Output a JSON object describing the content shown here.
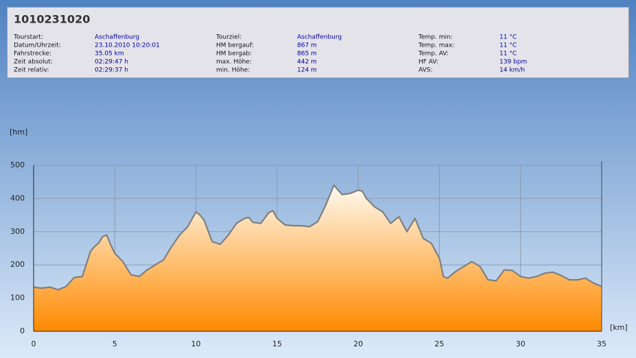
{
  "header": {
    "title": "1010231020",
    "columns": [
      [
        [
          "Tourstart:",
          "Aschaffenburg"
        ],
        [
          "Datum/Uhrzeit:",
          "23.10.2010 10:20:01"
        ],
        [
          "Fahrstrecke:",
          "35.05 km"
        ],
        [
          "Zeit absolut:",
          "02:29:47 h"
        ],
        [
          "Zeit relativ:",
          "02:29:37 h"
        ]
      ],
      [
        [
          "Tourziel:",
          "Aschaffenburg"
        ],
        [
          "HM bergauf:",
          "867 m"
        ],
        [
          "HM bergab:",
          "865 m"
        ],
        [
          "max. Höhe:",
          "442 m"
        ],
        [
          "min. Höhe:",
          "124 m"
        ]
      ],
      [
        [
          "Temp. min:",
          "11 °C"
        ],
        [
          "Temp. max:",
          "11 °C"
        ],
        [
          "Temp. AV:",
          "11 °C"
        ],
        [
          "HF AV:",
          "139 bpm"
        ],
        [
          "AVS:",
          "14 km/h"
        ]
      ]
    ]
  },
  "chart_data": {
    "type": "area",
    "ylabel": "[hm]",
    "xlabel": "[km]",
    "x": [
      0,
      0.5,
      1,
      1.5,
      2,
      2.5,
      3,
      3.5,
      3.75,
      4,
      4.25,
      4.5,
      4.75,
      5,
      5.5,
      6,
      6.5,
      7,
      7.5,
      8,
      8.5,
      9,
      9.5,
      10,
      10.25,
      10.5,
      11,
      11.5,
      12,
      12.5,
      13,
      13.25,
      13.5,
      14,
      14.5,
      14.75,
      15,
      15.5,
      16,
      16.5,
      17,
      17.5,
      18,
      18.5,
      19,
      19.5,
      20,
      20.25,
      20.5,
      21,
      21.5,
      22,
      22.5,
      23,
      23.5,
      23.75,
      24,
      24.5,
      25,
      25.25,
      25.5,
      26,
      26.5,
      27,
      27.5,
      28,
      28.5,
      29,
      29.5,
      30,
      30.5,
      31,
      31.5,
      32,
      32.5,
      33,
      33.5,
      34,
      34.5,
      35
    ],
    "values": [
      133,
      130,
      133,
      125,
      135,
      162,
      165,
      240,
      255,
      265,
      285,
      290,
      260,
      235,
      210,
      170,
      165,
      185,
      200,
      215,
      255,
      290,
      315,
      360,
      350,
      335,
      270,
      262,
      290,
      325,
      340,
      343,
      328,
      325,
      358,
      363,
      340,
      320,
      318,
      318,
      315,
      330,
      380,
      440,
      412,
      415,
      425,
      422,
      400,
      375,
      360,
      325,
      345,
      300,
      340,
      310,
      280,
      265,
      220,
      165,
      160,
      180,
      195,
      210,
      195,
      155,
      152,
      185,
      183,
      165,
      160,
      165,
      175,
      178,
      168,
      155,
      155,
      160,
      145,
      135
    ],
    "xlim": [
      0,
      35
    ],
    "xticks": [
      0,
      5,
      10,
      15,
      20,
      25,
      30,
      35
    ],
    "ylim": [
      0,
      500
    ],
    "yticks": [
      0,
      100,
      200,
      300,
      400,
      500
    ],
    "grid": true,
    "line_color": "#7f7f7f",
    "fill_top": "#fffaf0",
    "fill_bottom": "#ff8a00"
  }
}
